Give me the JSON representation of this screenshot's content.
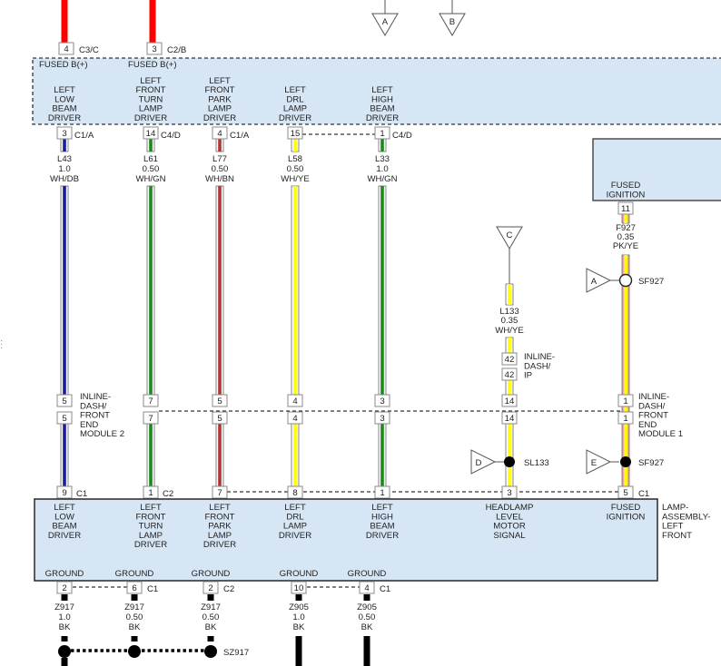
{
  "top_module": {
    "fused_labels": [
      "FUSED B(+)",
      "FUSED B(+)"
    ],
    "inputs": [
      {
        "pin": "4",
        "conn": "C3/C"
      },
      {
        "pin": "3",
        "conn": "C2/B"
      }
    ],
    "drivers": [
      [
        "LEFT",
        "LOW",
        "BEAM",
        "DRIVER"
      ],
      [
        "LEFT",
        "FRONT",
        "TURN",
        "LAMP",
        "DRIVER"
      ],
      [
        "LEFT",
        "FRONT",
        "PARK",
        "LAMP",
        "DRIVER"
      ],
      [
        "LEFT",
        "DRL",
        "LAMP",
        "DRIVER"
      ],
      [
        "LEFT",
        "HIGH",
        "BEAM",
        "DRIVER"
      ]
    ]
  },
  "offpage_refs": {
    "top": [
      "A",
      "B"
    ],
    "c": "C",
    "d": "D",
    "e": "E",
    "a_right": "A"
  },
  "circuits": [
    {
      "pin_top": "3",
      "conn_top": "C1/A",
      "wire": "L43",
      "gauge": "1.0",
      "color": "WH/DB",
      "inline_pin": "5",
      "bottom_pin": "9",
      "bottom_conn": "C1"
    },
    {
      "pin_top": "14",
      "conn_top": "C4/D",
      "wire": "L61",
      "gauge": "0.50",
      "color": "WH/GN",
      "inline_pin": "7",
      "bottom_pin": "1",
      "bottom_conn": "C2"
    },
    {
      "pin_top": "4",
      "conn_top": "C1/A",
      "wire": "L77",
      "gauge": "0.50",
      "color": "WH/BN",
      "inline_pin": "5",
      "bottom_pin": "7",
      "bottom_conn": ""
    },
    {
      "pin_top": "15",
      "conn_top": "",
      "wire": "L58",
      "gauge": "0.50",
      "color": "WH/YE",
      "inline_pin": "4",
      "bottom_pin": "8",
      "bottom_conn": ""
    },
    {
      "pin_top": "1",
      "conn_top": "C4/D",
      "wire": "L33",
      "gauge": "1.0",
      "color": "WH/GN",
      "inline_pin": "3",
      "bottom_pin": "1",
      "bottom_conn": ""
    }
  ],
  "inline_module2_label": [
    "INLINE-",
    "DASH/",
    "FRONT",
    "END",
    "MODULE 2"
  ],
  "headlamp_circuit": {
    "wire": "L133",
    "gauge": "0.35",
    "color": "WH/YE",
    "ip_pin": "42",
    "ip_label": [
      "INLINE-",
      "DASH/",
      "IP"
    ],
    "inline_pin": "14",
    "splice": "SL133",
    "bottom_pin": "3"
  },
  "fused_ignition_module": {
    "label": [
      "FUSED",
      "IGNITION"
    ],
    "pin": "11"
  },
  "ignition_circuit": {
    "wire": "F927",
    "gauge": "0.35",
    "color": "PK/YE",
    "splice_top": "SF927",
    "inline_pin": "1",
    "inline_label": [
      "INLINE-",
      "DASH/",
      "FRONT",
      "END",
      "MODULE 1"
    ],
    "splice_bottom": "SF927",
    "bottom_pin": "5",
    "bottom_conn": "C1"
  },
  "lamp_assembly": {
    "name": [
      "LAMP-",
      "ASSEMBLY-",
      "LEFT",
      "FRONT"
    ],
    "functions": [
      [
        "LEFT",
        "LOW",
        "BEAM",
        "DRIVER"
      ],
      [
        "LEFT",
        "FRONT",
        "TURN",
        "LAMP",
        "DRIVER"
      ],
      [
        "LEFT",
        "FRONT",
        "PARK",
        "LAMP",
        "DRIVER"
      ],
      [
        "LEFT",
        "DRL",
        "LAMP",
        "DRIVER"
      ],
      [
        "LEFT",
        "HIGH",
        "BEAM",
        "DRIVER"
      ],
      [
        "HEADLAMP",
        "LEVEL",
        "MOTOR",
        "SIGNAL"
      ],
      [
        "FUSED",
        "IGNITION"
      ]
    ]
  },
  "grounds": [
    {
      "label": "GROUND",
      "pin": "2",
      "conn": "",
      "wire": "Z917",
      "gauge": "1.0",
      "color": "BK"
    },
    {
      "label": "GROUND",
      "pin": "6",
      "conn": "C1",
      "wire": "Z917",
      "gauge": "0.50",
      "color": "BK"
    },
    {
      "label": "GROUND",
      "pin": "2",
      "conn": "C2",
      "wire": "Z917",
      "gauge": "0.50",
      "color": "BK"
    },
    {
      "label": "GROUND",
      "pin": "10",
      "conn": "",
      "wire": "Z905",
      "gauge": "1.0",
      "color": "BK"
    },
    {
      "label": "GROUND",
      "pin": "4",
      "conn": "C1",
      "wire": "Z905",
      "gauge": "0.50",
      "color": "BK"
    }
  ],
  "ground_splice": "SZ917",
  "colors": {
    "module_fill": "#d6e6f5",
    "power": "#ff0000",
    "DB": "#1c1c9e",
    "GN": "#1a8a1a",
    "BN": "#b33434",
    "YE": "#ffff00",
    "PK": "#f2a6a6",
    "BK": "#000000"
  }
}
